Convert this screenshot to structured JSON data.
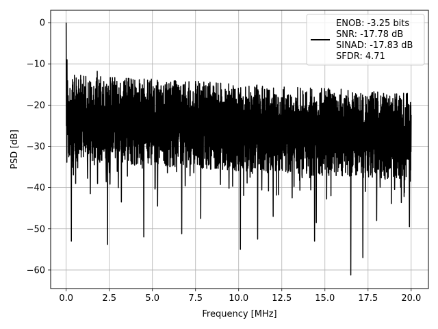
{
  "chart_data": {
    "type": "line",
    "title": "",
    "xlabel": "Frequency [MHz]",
    "ylabel": "PSD [dB]",
    "xlim": [
      -0.9,
      21.0
    ],
    "ylim": [
      -64.5,
      3.0
    ],
    "xticks": [
      0.0,
      2.5,
      5.0,
      7.5,
      10.0,
      12.5,
      15.0,
      17.5,
      20.0
    ],
    "xtick_labels": [
      "0.0",
      "2.5",
      "5.0",
      "7.5",
      "10.0",
      "12.5",
      "15.0",
      "17.5",
      "20.0"
    ],
    "yticks": [
      0,
      -10,
      -20,
      -30,
      -40,
      -50,
      -60
    ],
    "ytick_labels": [
      "0",
      "−10",
      "−20",
      "−30",
      "−40",
      "−50",
      "−60"
    ],
    "grid": true,
    "legend_position": "top-right",
    "legend_lines": [
      "ENOB: -3.25 bits",
      "SNR: -17.78 dB",
      "SINAD: -17.83 dB",
      "SFDR: 4.71"
    ],
    "series": [
      {
        "color": "#000000",
        "x_range": [
          0.0,
          20.0
        ],
        "peak": {
          "x": 0.0,
          "y": 0.0
        },
        "band_top_start": -12.5,
        "band_top_end": -17.0,
        "band_bottom_start": -33.5,
        "band_bottom_end": -38.5,
        "deep_dips": [
          {
            "x": 0.3,
            "y": -53.0
          },
          {
            "x": 0.55,
            "y": -39.0
          },
          {
            "x": 1.4,
            "y": -41.5
          },
          {
            "x": 2.4,
            "y": -53.8
          },
          {
            "x": 3.2,
            "y": -43.5
          },
          {
            "x": 4.5,
            "y": -52.0
          },
          {
            "x": 5.3,
            "y": -44.5
          },
          {
            "x": 6.7,
            "y": -51.2
          },
          {
            "x": 7.8,
            "y": -47.5
          },
          {
            "x": 10.1,
            "y": -55.0
          },
          {
            "x": 11.1,
            "y": -52.5
          },
          {
            "x": 12.0,
            "y": -47.0
          },
          {
            "x": 14.5,
            "y": -48.5
          },
          {
            "x": 14.4,
            "y": -53.0
          },
          {
            "x": 16.5,
            "y": -61.2
          },
          {
            "x": 17.2,
            "y": -57.0
          },
          {
            "x": 18.0,
            "y": -48.0
          },
          {
            "x": 19.9,
            "y": -49.5
          }
        ],
        "spikes": [
          {
            "x": 0.05,
            "y": -9.0
          },
          {
            "x": 1.8,
            "y": -11.8
          },
          {
            "x": 3.6,
            "y": -13.5
          }
        ]
      }
    ]
  }
}
